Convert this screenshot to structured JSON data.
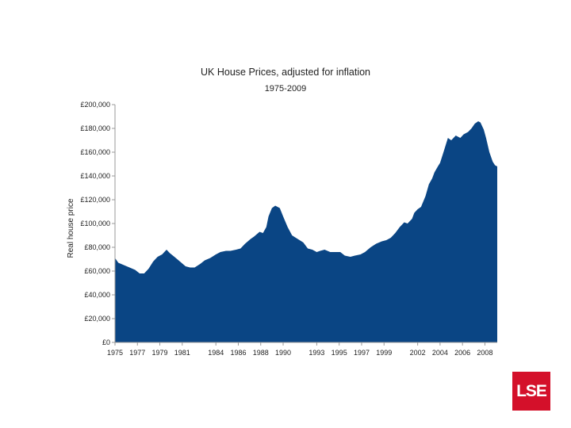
{
  "logo": {
    "text": "LSE",
    "color": "#d4102a"
  },
  "chart_data": {
    "type": "area",
    "title": "UK House Prices, adjusted for inflation",
    "subtitle": "1975-2009",
    "ylabel": "Real house price",
    "xlabel": "",
    "ylim": [
      0,
      200000
    ],
    "xlim": [
      1975,
      2009.1
    ],
    "y_ticks": [
      0,
      20000,
      40000,
      60000,
      80000,
      100000,
      120000,
      140000,
      160000,
      180000,
      200000
    ],
    "y_tick_labels": [
      "£0",
      "£20,000",
      "£40,000",
      "£60,000",
      "£80,000",
      "£100,000",
      "£120,000",
      "£140,000",
      "£160,000",
      "£180,000",
      "£200,000"
    ],
    "x_ticks": [
      1975,
      1977,
      1979,
      1981,
      1984,
      1986,
      1988,
      1990,
      1993,
      1995,
      1997,
      1999,
      2002,
      2004,
      2006,
      2008
    ],
    "x_tick_labels": [
      "1975",
      "1977",
      "1979",
      "1981",
      "1984",
      "1986",
      "1988",
      "1990",
      "1993",
      "1995",
      "1997",
      "1999",
      "2002",
      "2004",
      "2006",
      "2008"
    ],
    "grid": false,
    "color": "#0a4584",
    "series": [
      {
        "name": "",
        "x": [
          1975.0,
          1975.3,
          1975.8,
          1976.3,
          1976.8,
          1977.2,
          1977.6,
          1978.0,
          1978.4,
          1978.8,
          1979.2,
          1979.6,
          1979.9,
          1980.3,
          1980.8,
          1981.3,
          1981.7,
          1982.1,
          1982.6,
          1983.0,
          1983.5,
          1984.0,
          1984.4,
          1984.9,
          1985.3,
          1985.8,
          1986.2,
          1986.6,
          1987.1,
          1987.4,
          1987.9,
          1988.2,
          1988.5,
          1988.7,
          1989.0,
          1989.3,
          1989.7,
          1990.0,
          1990.4,
          1990.8,
          1991.3,
          1991.8,
          1992.2,
          1992.6,
          1993.0,
          1993.3,
          1993.7,
          1994.2,
          1994.7,
          1995.1,
          1995.5,
          1996.0,
          1996.4,
          1996.9,
          1997.3,
          1997.8,
          1998.3,
          1998.8,
          1999.2,
          1999.6,
          2000.0,
          2000.4,
          2000.8,
          2001.1,
          2001.5,
          2001.7,
          2002.0,
          2002.3,
          2002.7,
          2003.0,
          2003.3,
          2003.5,
          2003.8,
          2004.0,
          2004.3,
          2004.7,
          2005.0,
          2005.4,
          2005.8,
          2006.1,
          2006.5,
          2006.8,
          2007.1,
          2007.4,
          2007.6,
          2007.9,
          2008.1,
          2008.4,
          2008.7,
          2008.9,
          2009.1
        ],
        "y": [
          71000,
          67000,
          65000,
          63000,
          61000,
          58000,
          58000,
          62000,
          68000,
          72000,
          74000,
          78000,
          75000,
          72000,
          68000,
          64000,
          63000,
          63000,
          66000,
          69000,
          71000,
          74000,
          76000,
          77000,
          77000,
          78000,
          79000,
          83000,
          87000,
          89000,
          93000,
          92000,
          97000,
          106000,
          113000,
          115000,
          113000,
          106000,
          97000,
          90000,
          87000,
          84000,
          79000,
          78000,
          76000,
          77000,
          78000,
          76000,
          76000,
          76000,
          73000,
          72000,
          73000,
          74000,
          76000,
          80000,
          83000,
          85000,
          86000,
          88000,
          92000,
          97000,
          101000,
          100000,
          104000,
          109000,
          112000,
          114000,
          123000,
          133000,
          138000,
          143000,
          148000,
          151000,
          160000,
          172000,
          170000,
          174000,
          172000,
          175000,
          177000,
          180000,
          184000,
          186000,
          185000,
          179000,
          172000,
          160000,
          152000,
          149000,
          148000
        ]
      }
    ]
  }
}
